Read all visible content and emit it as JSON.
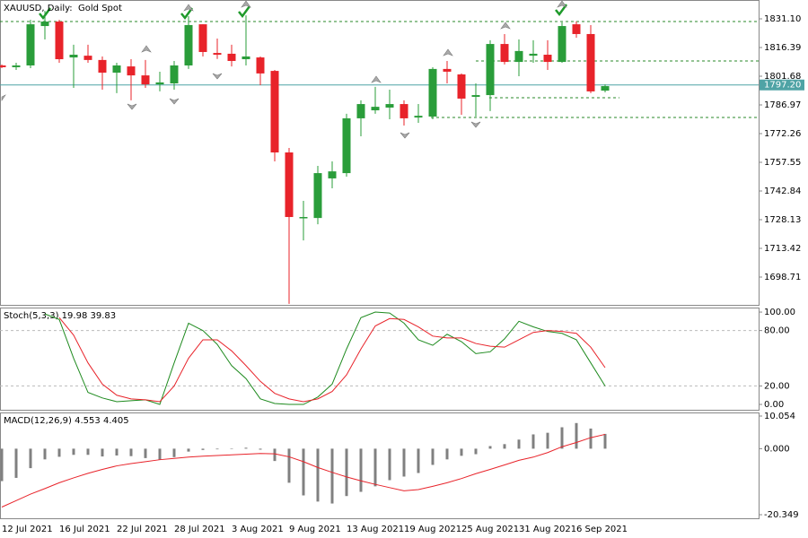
{
  "chart_data": [
    {
      "type": "candlestick",
      "title": "XAUUSD, Daily:  Gold Spot",
      "categories": [
        "12 Jul 2021",
        null,
        null,
        null,
        "16 Jul 2021",
        null,
        null,
        null,
        "22 Jul 2021",
        null,
        null,
        null,
        "28 Jul 2021",
        null,
        null,
        null,
        "3 Aug 2021",
        null,
        null,
        null,
        "9 Aug 2021",
        null,
        null,
        null,
        "13 Aug 2021",
        null,
        null,
        null,
        "19 Aug 2021",
        null,
        null,
        null,
        "25 Aug 2021",
        null,
        null,
        null,
        "31 Aug 2021",
        null,
        null,
        null,
        "6 Sep 2021",
        null,
        null
      ],
      "open": [
        1807.2,
        1806.3,
        1807.2,
        1827.4,
        1829.7,
        1811.3,
        1812.2,
        1810.0,
        1803.5,
        1806.7,
        1802.1,
        1797.5,
        1798.0,
        1807.2,
        1828.3,
        1813.6,
        1813.2,
        1810.4,
        1811.3,
        1804.4,
        1762.6,
        1729.0,
        1729.0,
        1749.3,
        1752.0,
        1780.1,
        1784.2,
        1785.6,
        1787.4,
        1780.5,
        1781.0,
        1805.4,
        1802.6,
        1791.1,
        1792.0,
        1818.2,
        1809.0,
        1812.2,
        1812.7,
        1809.0,
        1828.3,
        1823.3,
        1794.3
      ],
      "high": [
        1807.7,
        1808.6,
        1830.6,
        1835.2,
        1830.6,
        1817.8,
        1817.8,
        1811.8,
        1808.6,
        1810.4,
        1810.0,
        1804.0,
        1809.5,
        1832.5,
        1828.3,
        1821.0,
        1817.8,
        1832.9,
        1811.8,
        1804.9,
        1764.9,
        1737.8,
        1755.7,
        1758.0,
        1782.4,
        1789.3,
        1796.2,
        1794.8,
        1789.3,
        1787.4,
        1806.3,
        1809.5,
        1803.1,
        1798.0,
        1820.1,
        1823.3,
        1820.5,
        1820.1,
        1820.1,
        1829.3,
        1829.7,
        1827.9,
        1797.5
      ],
      "low": [
        1805.8,
        1804.9,
        1805.8,
        1820.5,
        1808.6,
        1795.7,
        1808.6,
        1794.8,
        1793.0,
        1789.3,
        1795.7,
        1793.9,
        1794.8,
        1805.4,
        1811.8,
        1810.5,
        1806.7,
        1807.2,
        1797.1,
        1758.0,
        1685.0,
        1717.5,
        1725.8,
        1744.2,
        1750.2,
        1770.9,
        1782.4,
        1779.6,
        1776.4,
        1777.8,
        1779.6,
        1798.0,
        1781.9,
        1781.0,
        1783.8,
        1807.7,
        1801.7,
        1808.6,
        1804.9,
        1808.6,
        1821.4,
        1793.0,
        1793.4
      ],
      "close": [
        1806.3,
        1807.2,
        1828.3,
        1829.7,
        1810.4,
        1812.7,
        1810.0,
        1803.5,
        1807.2,
        1802.1,
        1797.5,
        1798.5,
        1807.2,
        1827.9,
        1814.1,
        1812.7,
        1809.5,
        1811.8,
        1803.1,
        1762.6,
        1729.5,
        1729.5,
        1752.0,
        1752.9,
        1780.1,
        1787.4,
        1786.0,
        1787.4,
        1780.1,
        1781.4,
        1805.4,
        1804.0,
        1790.2,
        1792.0,
        1818.2,
        1809.0,
        1814.6,
        1813.2,
        1809.0,
        1827.4,
        1823.3,
        1793.9,
        1796.6
      ],
      "up_color": "#2a9d3a",
      "down_color": "#e8232a",
      "ylim": [
        1684.46,
        1840.75
      ],
      "yticks": [
        {
          "value": 1831.1,
          "label": "1831.10"
        },
        {
          "value": 1816.39,
          "label": "1816.39"
        },
        {
          "value": 1801.68,
          "label": "1801.68"
        },
        {
          "value": 1786.97,
          "label": "1786.97"
        },
        {
          "value": 1772.26,
          "label": "1772.26"
        },
        {
          "value": 1757.55,
          "label": "1757.55"
        },
        {
          "value": 1742.84,
          "label": "1742.84"
        },
        {
          "value": 1728.13,
          "label": "1728.13"
        },
        {
          "value": 1713.42,
          "label": "1713.42"
        },
        {
          "value": 1698.71,
          "label": "1698.71"
        }
      ],
      "last_price": {
        "value": 1797.2,
        "label": "1797.20"
      },
      "last_price_color": "#4fa3a5"
    },
    {
      "type": "line",
      "title": "Stoch(5,3,3)",
      "series": [
        {
          "color": "#1e8a1e",
          "values": [
            null,
            null,
            null,
            98,
            92,
            50,
            13,
            7,
            3,
            4,
            5,
            0,
            45,
            88,
            80,
            65,
            42,
            28,
            6,
            1,
            0,
            0,
            8,
            22,
            60,
            94,
            100,
            99,
            88,
            70,
            64,
            76,
            68,
            55,
            57,
            71,
            90,
            84,
            79,
            77,
            70,
            45,
            19.98
          ]
        },
        {
          "color": "#e8232a",
          "values": [
            null,
            null,
            null,
            null,
            94,
            75,
            45,
            22,
            10,
            6,
            5,
            3,
            20,
            50,
            70,
            70,
            58,
            42,
            25,
            12,
            6,
            3,
            6,
            14,
            32,
            60,
            85,
            93,
            92,
            84,
            74,
            72,
            72,
            66,
            63,
            62,
            70,
            78,
            80,
            79,
            77,
            62,
            39.83
          ]
        }
      ],
      "ylim": [
        -5.8,
        104.9
      ],
      "yticks": [
        {
          "value": 100,
          "label": "100.00"
        },
        {
          "value": 80,
          "label": "80.00"
        },
        {
          "value": 20,
          "label": "20.00"
        },
        {
          "value": 0,
          "label": "0.00"
        }
      ],
      "levels": [
        80,
        20
      ]
    },
    {
      "type": "bar",
      "title": "MACD(12,26,9)",
      "values": [
        -10,
        -9,
        -6,
        -3.3,
        -2.5,
        -1.9,
        -1.9,
        -2.4,
        -2.1,
        -2.3,
        -2.9,
        -3.4,
        -2.6,
        -0.9,
        -0.4,
        -0.2,
        0.1,
        0.3,
        -0.3,
        -3.8,
        -10.5,
        -14.4,
        -16.3,
        -16.9,
        -14.6,
        -13.3,
        -11.6,
        -9.7,
        -8.6,
        -7.5,
        -5,
        -3.3,
        -2.2,
        -1.7,
        0.8,
        1.4,
        2.8,
        4.4,
        4.9,
        6.6,
        7.9,
        6.2,
        4.553
      ],
      "color": "#808080",
      "line_values": [
        -18,
        -16,
        -14,
        -12.3,
        -10.5,
        -9,
        -7.6,
        -6.4,
        -5.3,
        -4.6,
        -4,
        -3.4,
        -3,
        -2.6,
        -2.3,
        -2.1,
        -1.9,
        -1.7,
        -1.5,
        -1.6,
        -2.5,
        -4,
        -5.8,
        -7.3,
        -8.7,
        -9.9,
        -11,
        -12,
        -13,
        -12.6,
        -11.6,
        -10.5,
        -9.2,
        -7.7,
        -6.4,
        -5,
        -3.6,
        -2.6,
        -1.2,
        0.6,
        1.9,
        3.4,
        4.405
      ],
      "line_color": "#e8232a",
      "ylim": [
        -21.45,
        11.16
      ],
      "yticks": [
        10.054,
        {
          "value": 0,
          "label": "0.000"
        },
        -20.349
      ]
    }
  ]
}
